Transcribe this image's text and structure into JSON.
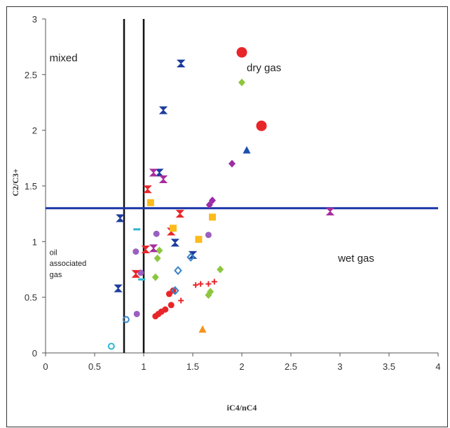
{
  "chart_data": {
    "type": "scatter",
    "xlabel": "iC4/nC4",
    "ylabel": "C2/C3+",
    "xlim": [
      0,
      4
    ],
    "ylim": [
      0,
      3
    ],
    "xticks": [
      "0",
      "0.5",
      "1",
      "1.5",
      "2",
      "2.5",
      "3",
      "3.5",
      "4"
    ],
    "yticks": [
      "0",
      "0.5",
      "1",
      "1.5",
      "2",
      "2.5",
      "3"
    ],
    "grid": false,
    "reference_lines": [
      {
        "orientation": "vertical",
        "value": 0.8,
        "color": "#111111"
      },
      {
        "orientation": "vertical",
        "value": 1.0,
        "color": "#111111"
      },
      {
        "orientation": "horizontal",
        "value": 1.3,
        "color": "#1c37a8"
      }
    ],
    "annotations": [
      {
        "text": "mixed",
        "x": 0.04,
        "y": 2.62
      },
      {
        "text": "dry gas",
        "x": 2.05,
        "y": 2.53
      },
      {
        "text": "oil",
        "x": 0.04,
        "y": 0.88,
        "size": "small"
      },
      {
        "text": "associated",
        "x": 0.04,
        "y": 0.78,
        "size": "small"
      },
      {
        "text": "gas",
        "x": 0.04,
        "y": 0.68,
        "size": "small"
      },
      {
        "text": "wet gas",
        "x": 2.98,
        "y": 0.82
      }
    ],
    "series": [
      {
        "marker": "circle-large",
        "color": "#e8262a",
        "points": [
          [
            2.0,
            2.7
          ],
          [
            2.2,
            2.04
          ]
        ]
      },
      {
        "marker": "circle",
        "color": "#e8262a",
        "points": [
          [
            1.12,
            0.33
          ],
          [
            1.15,
            0.35
          ],
          [
            1.18,
            0.37
          ],
          [
            1.22,
            0.39
          ],
          [
            1.28,
            0.43
          ],
          [
            1.26,
            0.53
          ],
          [
            1.3,
            0.56
          ]
        ]
      },
      {
        "marker": "diamond",
        "color": "#8dc63f",
        "points": [
          [
            2.0,
            2.43
          ],
          [
            1.16,
            0.92
          ],
          [
            1.14,
            0.85
          ],
          [
            1.12,
            0.68
          ],
          [
            1.78,
            0.75
          ],
          [
            1.68,
            0.55
          ],
          [
            1.66,
            0.52
          ]
        ]
      },
      {
        "marker": "diamond",
        "color": "#9b2da6",
        "points": [
          [
            1.9,
            1.7
          ],
          [
            1.67,
            1.33
          ],
          [
            1.7,
            1.37
          ]
        ]
      },
      {
        "marker": "circle",
        "color": "#9b5fc0",
        "points": [
          [
            1.66,
            1.06
          ],
          [
            1.13,
            1.07
          ],
          [
            0.92,
            0.91
          ],
          [
            0.97,
            0.72
          ],
          [
            0.93,
            0.35
          ]
        ]
      },
      {
        "marker": "triangle",
        "color": "#1c4fb0",
        "points": [
          [
            2.05,
            1.82
          ]
        ]
      },
      {
        "marker": "triangle",
        "color": "#f7941d",
        "points": [
          [
            1.6,
            0.21
          ]
        ]
      },
      {
        "marker": "bowtie",
        "color": "#1c3c9e",
        "points": [
          [
            1.38,
            2.6
          ],
          [
            1.2,
            2.18
          ],
          [
            1.16,
            1.62
          ],
          [
            0.76,
            1.21
          ],
          [
            1.32,
            0.99
          ],
          [
            0.74,
            0.58
          ],
          [
            1.5,
            0.88
          ]
        ]
      },
      {
        "marker": "bowtie",
        "color": "#a82c9f",
        "points": [
          [
            1.1,
            1.62
          ],
          [
            1.2,
            1.56
          ],
          [
            1.1,
            0.94
          ],
          [
            2.9,
            1.27
          ]
        ]
      },
      {
        "marker": "bowtie",
        "color": "#e8262a",
        "points": [
          [
            1.04,
            1.47
          ],
          [
            1.37,
            1.25
          ],
          [
            1.28,
            1.09
          ],
          [
            1.02,
            0.93
          ],
          [
            0.92,
            0.71
          ]
        ]
      },
      {
        "marker": "square",
        "color": "#fdbb1c",
        "points": [
          [
            1.07,
            1.35
          ],
          [
            1.7,
            1.22
          ],
          [
            1.3,
            1.12
          ],
          [
            1.56,
            1.02
          ]
        ]
      },
      {
        "marker": "diamond-open",
        "color": "#3a85c8",
        "points": [
          [
            1.35,
            0.74
          ],
          [
            1.32,
            0.56
          ],
          [
            1.48,
            0.86
          ]
        ]
      },
      {
        "marker": "circle-open",
        "color": "#3a85c8",
        "points": [
          [
            0.82,
            0.3
          ]
        ]
      },
      {
        "marker": "circle-open",
        "color": "#2cb6d2",
        "points": [
          [
            0.67,
            0.06
          ]
        ]
      },
      {
        "marker": "dash",
        "color": "#2cb6d2",
        "points": [
          [
            0.93,
            1.11
          ],
          [
            0.98,
            0.66
          ]
        ]
      },
      {
        "marker": "plus",
        "color": "#e8262a",
        "points": [
          [
            1.53,
            0.61
          ],
          [
            1.58,
            0.62
          ],
          [
            1.66,
            0.62
          ],
          [
            1.72,
            0.64
          ],
          [
            1.38,
            0.47
          ]
        ]
      }
    ]
  }
}
